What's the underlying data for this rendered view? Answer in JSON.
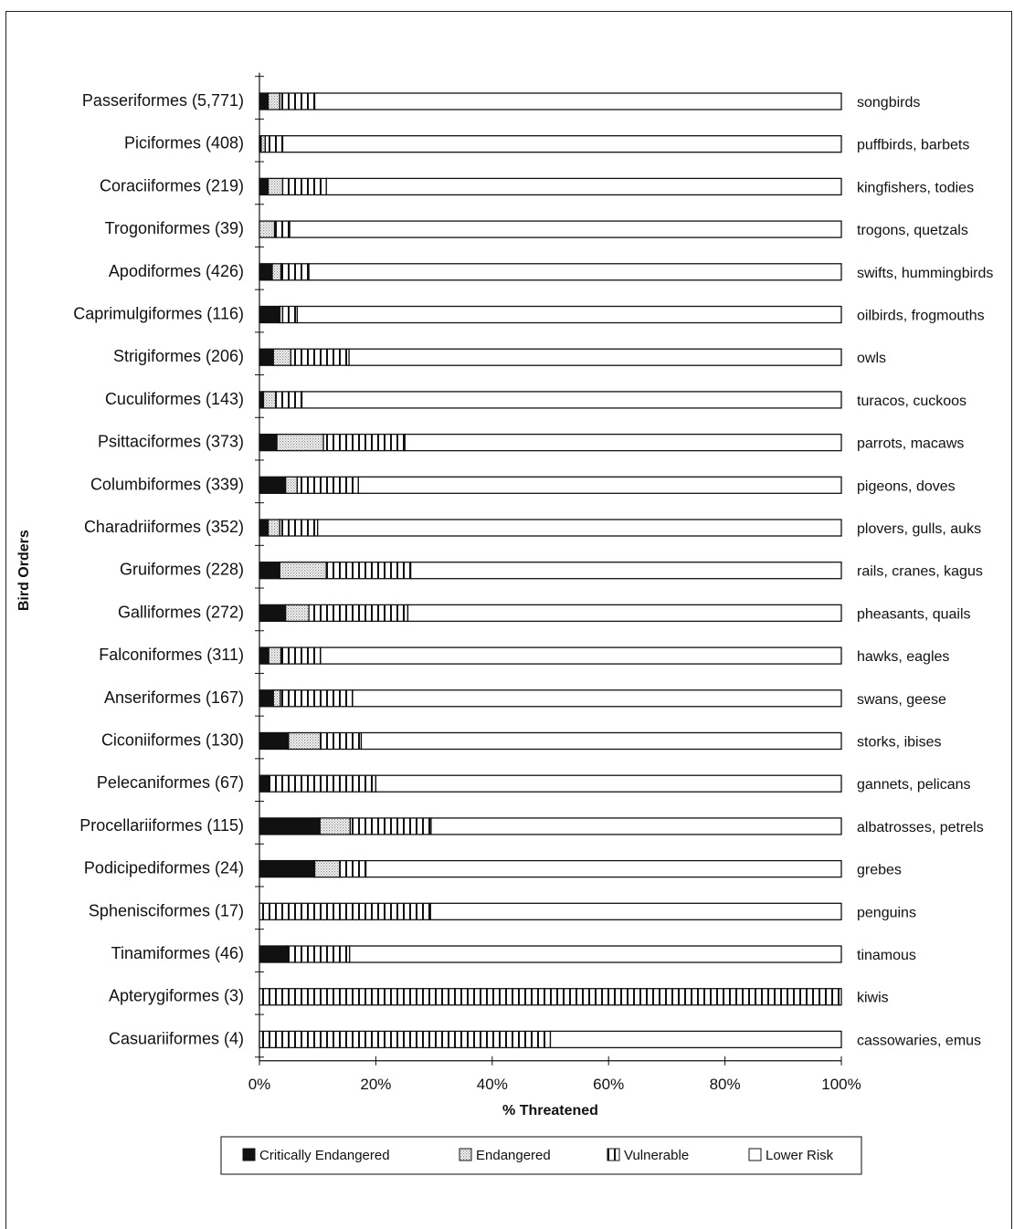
{
  "chart_data": {
    "type": "bar",
    "stacked": true,
    "orientation": "horizontal",
    "xlabel": "% Threatened",
    "ylabel": "Bird Orders",
    "xlim": [
      0,
      100
    ],
    "xticks": [
      "0%",
      "20%",
      "40%",
      "60%",
      "80%",
      "100%"
    ],
    "legend_position": "bottom",
    "legend": [
      "Critically  Endangered",
      "Endangered",
      "Vulnerable",
      "Lower Risk"
    ],
    "series_keys": [
      "critically_endangered",
      "endangered",
      "vulnerable",
      "lower_risk"
    ],
    "rows": [
      {
        "order": "Passeriformes (5,771)",
        "common": "songbirds",
        "values": [
          1.5,
          2,
          6,
          90.5
        ]
      },
      {
        "order": "Piciformes (408)",
        "common": "puffbirds, barbets",
        "values": [
          0.3,
          0.7,
          3,
          96
        ]
      },
      {
        "order": "Coraciiformes (219)",
        "common": "kingfishers, todies",
        "values": [
          1.5,
          2.5,
          7.5,
          88.5
        ]
      },
      {
        "order": "Trogoniformes (39)",
        "common": "trogons, quetzals",
        "values": [
          0,
          2.6,
          2.6,
          94.8
        ]
      },
      {
        "order": "Apodiformes (426)",
        "common": "swifts, hummingbirds",
        "values": [
          2.2,
          1.5,
          4.8,
          91.5
        ]
      },
      {
        "order": "Caprimulgiformes (116)",
        "common": "oilbirds, frogmouths",
        "values": [
          3.5,
          0.5,
          2.5,
          93.5
        ]
      },
      {
        "order": "Strigiformes (206)",
        "common": "owls",
        "values": [
          2.4,
          3,
          10,
          84.6
        ]
      },
      {
        "order": "Cuculiformes (143)",
        "common": "turacos, cuckoos",
        "values": [
          0.7,
          2.1,
          4.5,
          92.7
        ]
      },
      {
        "order": "Psittaciformes (373)",
        "common": "parrots, macaws",
        "values": [
          3,
          8,
          14,
          75
        ]
      },
      {
        "order": "Columbiformes (339)",
        "common": "pigeons, doves",
        "values": [
          4.5,
          2,
          10.5,
          83
        ]
      },
      {
        "order": "Charadriiformes (352)",
        "common": "plovers, gulls, auks",
        "values": [
          1.5,
          2,
          6.5,
          90
        ]
      },
      {
        "order": "Gruiformes (228)",
        "common": "rails, cranes, kagus",
        "values": [
          3.5,
          8,
          14.5,
          74
        ]
      },
      {
        "order": "Galliformes (272)",
        "common": "pheasants, quails",
        "values": [
          4.5,
          4,
          17,
          74.5
        ]
      },
      {
        "order": "Falconiformes (311)",
        "common": "hawks, eagles",
        "values": [
          1.6,
          2.1,
          6.8,
          89.5
        ]
      },
      {
        "order": "Anseriformes (167)",
        "common": "swans, geese",
        "values": [
          2.4,
          1.2,
          12.4,
          84
        ]
      },
      {
        "order": "Ciconiiformes (130)",
        "common": "storks, ibises",
        "values": [
          5,
          5.5,
          7,
          82.5
        ]
      },
      {
        "order": "Pelecaniformes (67)",
        "common": "gannets, pelicans",
        "values": [
          1.5,
          0,
          18.5,
          80
        ]
      },
      {
        "order": "Procellariiformes (115)",
        "common": "albatrosses, petrels",
        "values": [
          10.4,
          5.2,
          13.9,
          70.5
        ]
      },
      {
        "order": "Podicipediformes (24)",
        "common": "grebes",
        "values": [
          9.5,
          4.3,
          4.5,
          81.7
        ]
      },
      {
        "order": "Sphenisciformes (17)",
        "common": "penguins",
        "values": [
          0,
          0,
          29.4,
          70.6
        ]
      },
      {
        "order": "Tinamiformes (46)",
        "common": "tinamous",
        "values": [
          4.8,
          0,
          10.7,
          84.5
        ]
      },
      {
        "order": "Apterygiformes (3)",
        "common": "kiwis",
        "values": [
          0,
          0,
          100,
          0
        ]
      },
      {
        "order": "Casuariiformes (4)",
        "common": "cassowaries, emus",
        "values": [
          0,
          0,
          50,
          50
        ]
      }
    ]
  }
}
